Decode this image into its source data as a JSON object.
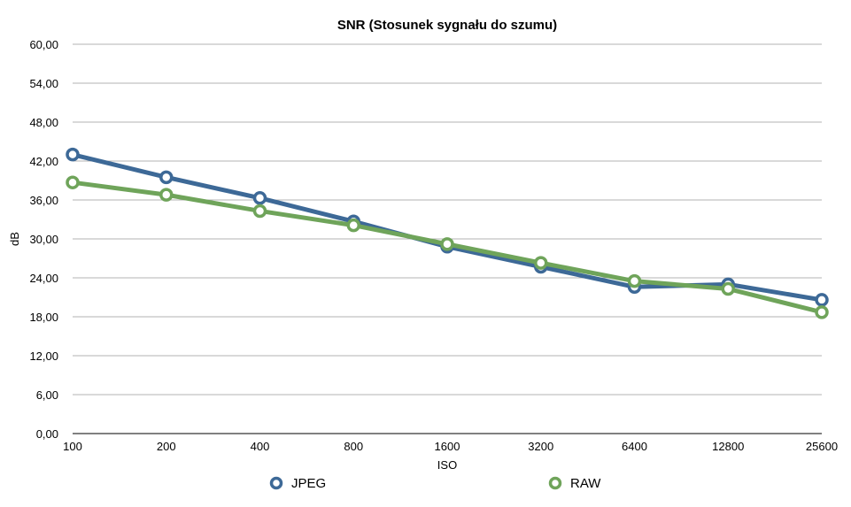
{
  "chart_data": {
    "type": "line",
    "title": "SNR (Stosunek sygnału do szumu)",
    "xlabel": "ISO",
    "ylabel": "dB",
    "categories": [
      "100",
      "200",
      "400",
      "800",
      "1600",
      "3200",
      "6400",
      "12800",
      "25600"
    ],
    "y_ticks": [
      "0,00",
      "6,00",
      "12,00",
      "18,00",
      "24,00",
      "30,00",
      "36,00",
      "42,00",
      "48,00",
      "54,00",
      "60,00"
    ],
    "ylim": [
      0,
      60
    ],
    "grid": true,
    "legend_position": "bottom",
    "series": [
      {
        "name": "JPEG",
        "color": "#3d6997",
        "values": [
          43.0,
          39.5,
          36.3,
          32.7,
          28.8,
          25.7,
          22.6,
          23.0,
          20.6
        ]
      },
      {
        "name": "RAW",
        "color": "#6fa45a",
        "values": [
          38.7,
          36.8,
          34.3,
          32.1,
          29.2,
          26.3,
          23.5,
          22.3,
          18.7
        ]
      }
    ]
  }
}
